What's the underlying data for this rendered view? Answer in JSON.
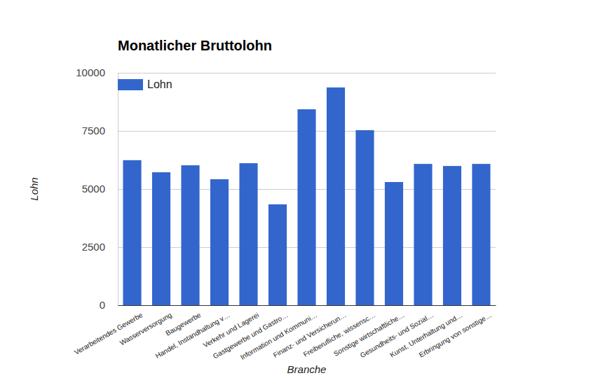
{
  "chart_data": {
    "type": "bar",
    "title": "Monatlicher Bruttolohn",
    "x_label": "Branche",
    "y_label": "Lohn",
    "categories": [
      "Verarbeitendes Gewerbe",
      "Wasserversorgung",
      "Baugewerbe",
      "Handel, Instandhaltung v…",
      "Verkehr und Lagerei",
      "Gastgewerbe und Gastro…",
      "Information und Kommuni…",
      "Finanz- und Versicherun…",
      "Freiberufliche, wissensc…",
      "Sonstige wirtschaftliche…",
      "Gesundheits- und Sozial…",
      "Kunst, Unterhaltung und…",
      "Erbringung von sonstige…"
    ],
    "series": [
      {
        "name": "Lohn",
        "color": "#3366cc",
        "values": [
          6240,
          5720,
          6020,
          5420,
          6110,
          4340,
          8430,
          9370,
          7530,
          5300,
          6080,
          5990,
          6080
        ]
      }
    ],
    "ylim": [
      0,
      10000
    ],
    "yticks": [
      0,
      2500,
      5000,
      7500,
      10000
    ],
    "grid": true,
    "legend": "top-left"
  }
}
